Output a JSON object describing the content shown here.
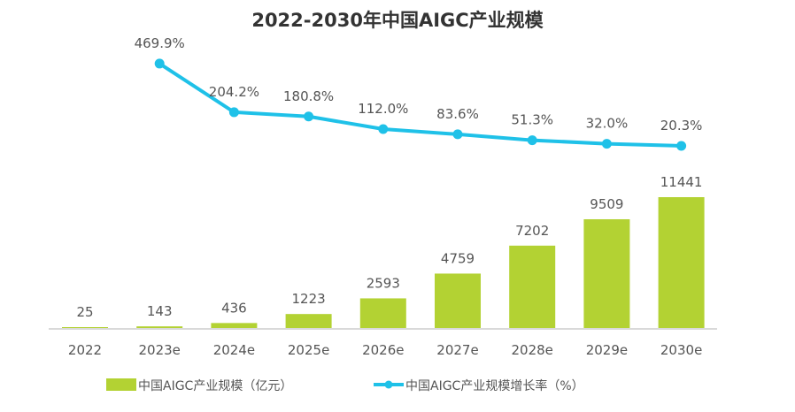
{
  "chart_data": {
    "type": "bar",
    "title": "2022-2030年中国AIGC产业规模",
    "categories": [
      "2022",
      "2023e",
      "2024e",
      "2025e",
      "2026e",
      "2027e",
      "2028e",
      "2029e",
      "2030e"
    ],
    "series": [
      {
        "name": "中国AIGC产业规模（亿元）",
        "type": "bar",
        "color": "#b3d233",
        "values": [
          25,
          143,
          436,
          1223,
          2593,
          4759,
          7202,
          9509,
          11441
        ],
        "labels": [
          "25",
          "143",
          "436",
          "1223",
          "2593",
          "4759",
          "7202",
          "9509",
          "11441"
        ]
      },
      {
        "name": "中国AIGC产业规模增长率（%）",
        "type": "line",
        "color": "#1fc1e8",
        "values": [
          null,
          469.9,
          204.2,
          180.8,
          112.0,
          83.6,
          51.3,
          32.0,
          20.3
        ],
        "labels": [
          "",
          "469.9%",
          "204.2%",
          "180.8%",
          "112.0%",
          "83.6%",
          "51.3%",
          "32.0%",
          "20.3%"
        ]
      }
    ],
    "legend_position": "bottom",
    "grid": false
  }
}
